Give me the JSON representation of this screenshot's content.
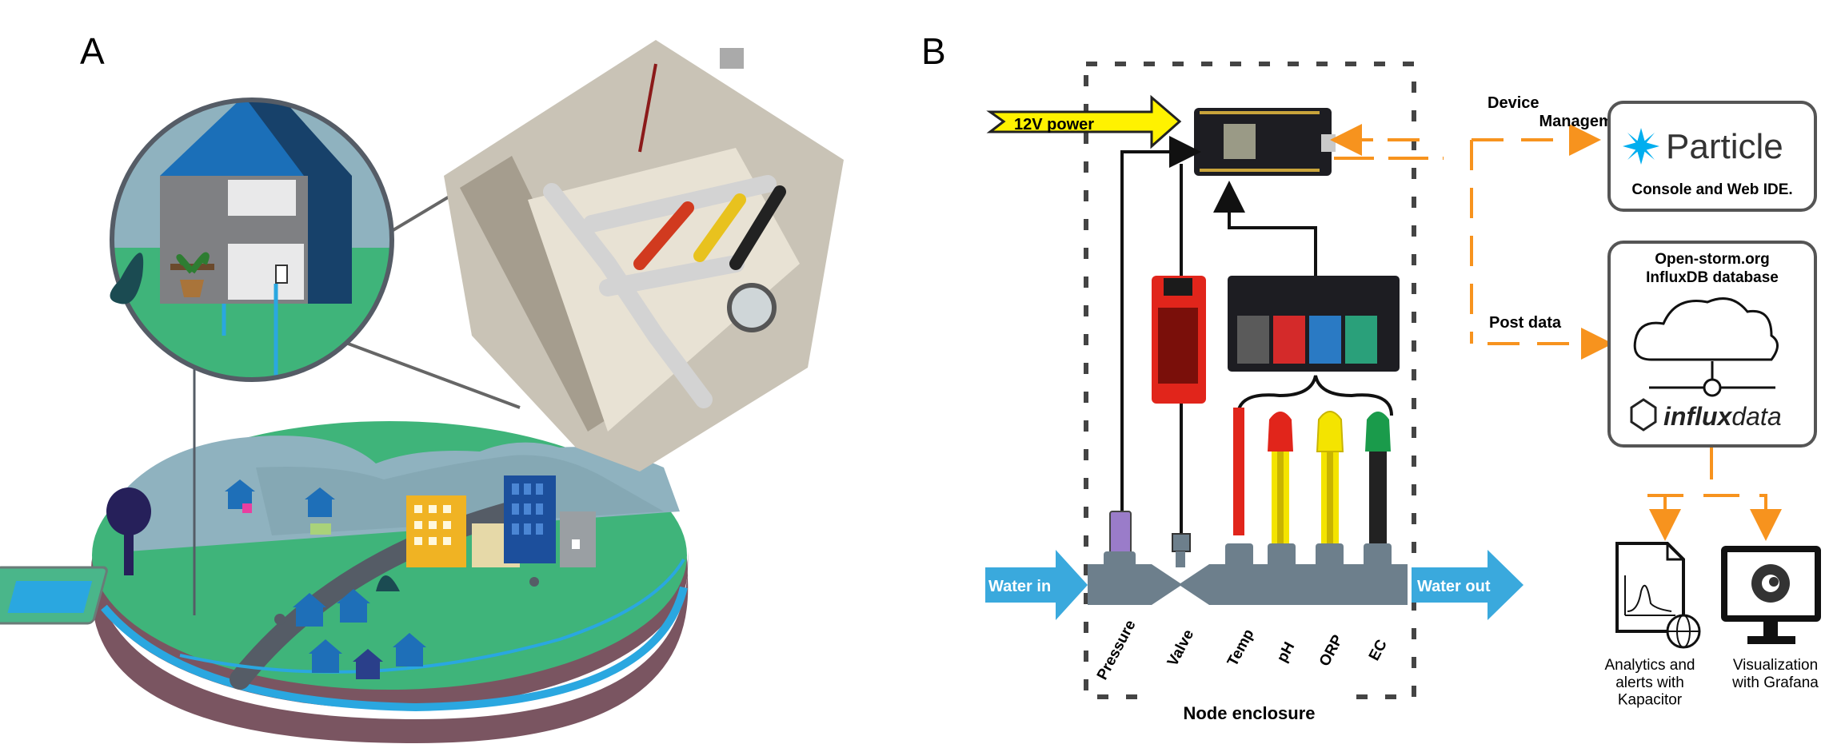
{
  "panel_a": {
    "label": "A"
  },
  "panel_b": {
    "label": "B",
    "power": "12V power",
    "water_in": "Water in",
    "water_out": "Water out",
    "enclosure": "Node enclosure",
    "components": [
      "Pressure",
      "Valve",
      "Temp",
      "pH",
      "ORP",
      "EC"
    ],
    "device_management": "Device Management",
    "post_data": "Post data",
    "particle": {
      "logo": "Particle",
      "caption": "Console and Web IDE."
    },
    "database": {
      "title": "Open-storm.org InfluxDB database",
      "logo": "influxdata",
      "logo_bold": "influx",
      "logo_light": "data"
    },
    "analytics": "Analytics and alerts with Kapacitor",
    "visualization": "Visualization with Grafana"
  },
  "colors": {
    "arrow_orange": "#f7931e",
    "water_blue": "#3aa9dd",
    "power_yellow": "#fff200",
    "pipe_gray": "#6d7f8c"
  }
}
